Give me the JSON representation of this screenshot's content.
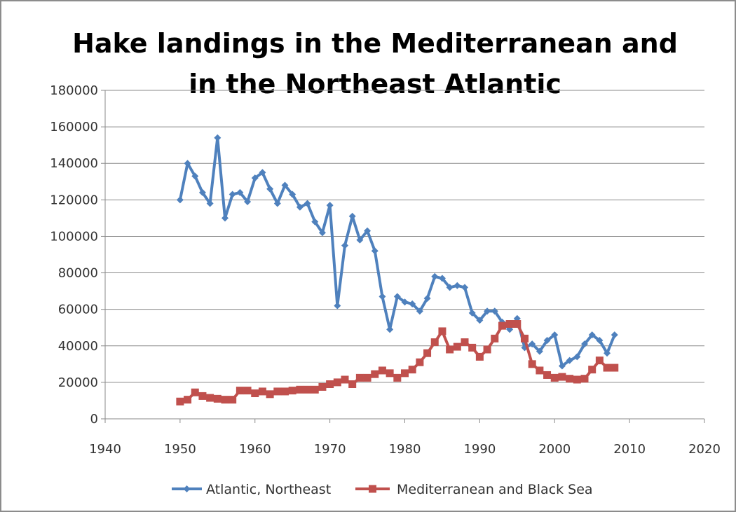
{
  "chart_data": {
    "type": "scatter",
    "title_lines": [
      "Hake landings in the Mediterranean and",
      "in the Northeast Atlantic"
    ],
    "xlabel": "",
    "ylabel": "",
    "xlim": [
      1940,
      2020
    ],
    "ylim": [
      0,
      180000
    ],
    "x_ticks": [
      1940,
      1950,
      1960,
      1970,
      1980,
      1990,
      2000,
      2010,
      2020
    ],
    "y_ticks": [
      0,
      20000,
      40000,
      60000,
      80000,
      100000,
      120000,
      140000,
      160000,
      180000
    ],
    "grid": "horizontal",
    "legend_position": "bottom",
    "series": [
      {
        "name": "Atlantic, Northeast",
        "color": "#4f81bd",
        "marker": "diamond",
        "x": [
          1950,
          1951,
          1952,
          1953,
          1954,
          1955,
          1956,
          1957,
          1958,
          1959,
          1960,
          1961,
          1962,
          1963,
          1964,
          1965,
          1966,
          1967,
          1968,
          1969,
          1970,
          1971,
          1972,
          1973,
          1974,
          1975,
          1976,
          1977,
          1978,
          1979,
          1980,
          1981,
          1982,
          1983,
          1984,
          1985,
          1986,
          1987,
          1988,
          1989,
          1990,
          1991,
          1992,
          1993,
          1994,
          1995,
          1996,
          1997,
          1998,
          1999,
          2000,
          2001,
          2002,
          2003,
          2004,
          2005,
          2006,
          2007,
          2008
        ],
        "y": [
          120000,
          140000,
          133000,
          124000,
          118000,
          154000,
          110000,
          123000,
          124000,
          119000,
          132000,
          135000,
          126000,
          118000,
          128000,
          123000,
          116000,
          118000,
          108000,
          102000,
          117000,
          62000,
          95000,
          111000,
          98000,
          103000,
          92000,
          67000,
          49000,
          67000,
          64000,
          63000,
          59000,
          66000,
          78000,
          77000,
          72000,
          73000,
          72000,
          58000,
          54000,
          59000,
          59000,
          53000,
          49000,
          55000,
          39000,
          41000,
          37000,
          43000,
          46000,
          29000,
          32000,
          34000,
          41000,
          46000,
          43000,
          36000,
          46000
        ]
      },
      {
        "name": "Mediterranean and Black Sea",
        "color": "#c0504d",
        "marker": "square",
        "x": [
          1950,
          1951,
          1952,
          1953,
          1954,
          1955,
          1956,
          1957,
          1958,
          1959,
          1960,
          1961,
          1962,
          1963,
          1964,
          1965,
          1966,
          1967,
          1968,
          1969,
          1970,
          1971,
          1972,
          1973,
          1974,
          1975,
          1976,
          1977,
          1978,
          1979,
          1980,
          1981,
          1982,
          1983,
          1984,
          1985,
          1986,
          1987,
          1988,
          1989,
          1990,
          1991,
          1992,
          1993,
          1994,
          1995,
          1996,
          1997,
          1998,
          1999,
          2000,
          2001,
          2002,
          2003,
          2004,
          2005,
          2006,
          2007,
          2008
        ],
        "y": [
          9500,
          10500,
          14500,
          12500,
          11500,
          11000,
          10500,
          10500,
          15500,
          15500,
          14000,
          15000,
          13500,
          15000,
          15000,
          15500,
          16000,
          16000,
          16000,
          17500,
          19000,
          20000,
          21500,
          19000,
          22500,
          22500,
          24500,
          26500,
          25000,
          22500,
          25000,
          27000,
          31000,
          36000,
          42000,
          48000,
          38000,
          39500,
          42000,
          39000,
          34000,
          38000,
          44000,
          51000,
          52000,
          52000,
          44000,
          30000,
          26500,
          24000,
          22500,
          23000,
          22000,
          21500,
          22000,
          27000,
          32000,
          28000,
          28000
        ]
      }
    ]
  }
}
